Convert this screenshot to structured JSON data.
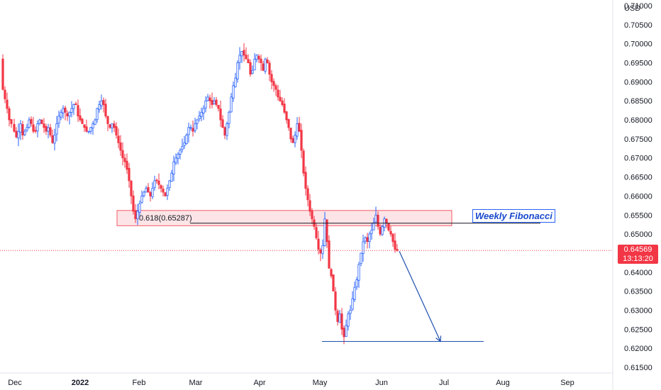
{
  "chart_data": {
    "type": "candlestick",
    "currency": "USD",
    "y_ticks": [
      "0.71000",
      "0.70500",
      "0.70000",
      "0.69500",
      "0.69000",
      "0.68500",
      "0.68000",
      "0.67500",
      "0.67000",
      "0.66500",
      "0.66000",
      "0.65500",
      "0.65000",
      "0.64500",
      "0.64000",
      "0.63500",
      "0.63000",
      "0.62500",
      "0.62000",
      "0.61500"
    ],
    "x_ticks": [
      {
        "label": "Dec",
        "bold": false
      },
      {
        "label": "2022",
        "bold": true
      },
      {
        "label": "Feb",
        "bold": false
      },
      {
        "label": "Mar",
        "bold": false
      },
      {
        "label": "Apr",
        "bold": false
      },
      {
        "label": "May",
        "bold": false
      },
      {
        "label": "Jun",
        "bold": false
      },
      {
        "label": "Jul",
        "bold": false
      },
      {
        "label": "Aug",
        "bold": false
      },
      {
        "label": "Sep",
        "bold": false
      }
    ],
    "ylim": [
      0.6135,
      0.7115
    ],
    "last_price": "0.64569",
    "countdown": "13:13:20",
    "colors": {
      "up": "#2962ff",
      "down": "#f23645",
      "zone_fill": "#fde4e6",
      "zone_border": "#f23645",
      "arrow": "#1e4fb0",
      "fib_line": "#131722"
    },
    "fib_level": {
      "label": "0.618(0.65287)",
      "value": 0.65287
    },
    "zone": {
      "low": 0.6522,
      "high": 0.6562
    },
    "target_level": 0.6218,
    "note": "Weekly Fibonacci",
    "price_path": [
      [
        0,
        0.696
      ],
      [
        4,
        0.688
      ],
      [
        7,
        0.6855
      ],
      [
        10,
        0.683
      ],
      [
        13,
        0.68
      ],
      [
        16,
        0.679
      ],
      [
        20,
        0.677
      ],
      [
        23,
        0.6755
      ],
      [
        26,
        0.677
      ],
      [
        29,
        0.679
      ],
      [
        32,
        0.676
      ],
      [
        35,
        0.677
      ],
      [
        38,
        0.678
      ],
      [
        41,
        0.68
      ],
      [
        44,
        0.679
      ],
      [
        47,
        0.677
      ],
      [
        50,
        0.677
      ],
      [
        53,
        0.679
      ],
      [
        56,
        0.68
      ],
      [
        59,
        0.679
      ],
      [
        62,
        0.678
      ],
      [
        65,
        0.677
      ],
      [
        68,
        0.678
      ],
      [
        71,
        0.676
      ],
      [
        74,
        0.674
      ],
      [
        77,
        0.676
      ],
      [
        80,
        0.679
      ],
      [
        83,
        0.681
      ],
      [
        86,
        0.682
      ],
      [
        89,
        0.683
      ],
      [
        92,
        0.682
      ],
      [
        95,
        0.681
      ],
      [
        98,
        0.682
      ],
      [
        101,
        0.683
      ],
      [
        104,
        0.684
      ],
      [
        107,
        0.684
      ],
      [
        110,
        0.681
      ],
      [
        113,
        0.68
      ],
      [
        116,
        0.679
      ],
      [
        119,
        0.678
      ],
      [
        122,
        0.677
      ],
      [
        125,
        0.677
      ],
      [
        128,
        0.678
      ],
      [
        131,
        0.679
      ],
      [
        134,
        0.68
      ],
      [
        137,
        0.683
      ],
      [
        140,
        0.684
      ],
      [
        143,
        0.685
      ],
      [
        146,
        0.684
      ],
      [
        149,
        0.681
      ],
      [
        152,
        0.679
      ],
      [
        155,
        0.678
      ],
      [
        158,
        0.679
      ],
      [
        161,
        0.678
      ],
      [
        164,
        0.676
      ],
      [
        167,
        0.674
      ],
      [
        170,
        0.672
      ],
      [
        173,
        0.67
      ],
      [
        176,
        0.669
      ],
      [
        179,
        0.667
      ],
      [
        182,
        0.664
      ],
      [
        185,
        0.66
      ],
      [
        188,
        0.656
      ],
      [
        191,
        0.654
      ],
      [
        194,
        0.656
      ],
      [
        197,
        0.658
      ],
      [
        200,
        0.66
      ],
      [
        203,
        0.661
      ],
      [
        206,
        0.662
      ],
      [
        209,
        0.661
      ],
      [
        212,
        0.66
      ],
      [
        215,
        0.662
      ],
      [
        218,
        0.664
      ],
      [
        221,
        0.664
      ],
      [
        224,
        0.663
      ],
      [
        227,
        0.662
      ],
      [
        230,
        0.661
      ],
      [
        233,
        0.66
      ],
      [
        236,
        0.662
      ],
      [
        239,
        0.664
      ],
      [
        242,
        0.666
      ],
      [
        245,
        0.669
      ],
      [
        248,
        0.67
      ],
      [
        251,
        0.671
      ],
      [
        254,
        0.672
      ],
      [
        257,
        0.673
      ],
      [
        260,
        0.674
      ],
      [
        263,
        0.676
      ],
      [
        266,
        0.678
      ],
      [
        269,
        0.678
      ],
      [
        272,
        0.677
      ],
      [
        275,
        0.679
      ],
      [
        278,
        0.68
      ],
      [
        281,
        0.681
      ],
      [
        284,
        0.682
      ],
      [
        287,
        0.683
      ],
      [
        290,
        0.685
      ],
      [
        293,
        0.686
      ],
      [
        296,
        0.685
      ],
      [
        299,
        0.684
      ],
      [
        302,
        0.685
      ],
      [
        305,
        0.684
      ],
      [
        308,
        0.683
      ],
      [
        311,
        0.68
      ],
      [
        314,
        0.678
      ],
      [
        317,
        0.676
      ],
      [
        320,
        0.679
      ],
      [
        323,
        0.682
      ],
      [
        326,
        0.686
      ],
      [
        329,
        0.689
      ],
      [
        332,
        0.691
      ],
      [
        335,
        0.695
      ],
      [
        338,
        0.697
      ],
      [
        341,
        0.698
      ],
      [
        344,
        0.697
      ],
      [
        347,
        0.696
      ],
      [
        350,
        0.695
      ],
      [
        353,
        0.692
      ],
      [
        356,
        0.693
      ],
      [
        359,
        0.696
      ],
      [
        362,
        0.697
      ],
      [
        365,
        0.696
      ],
      [
        368,
        0.695
      ],
      [
        371,
        0.693
      ],
      [
        374,
        0.696
      ],
      [
        377,
        0.695
      ],
      [
        380,
        0.692
      ],
      [
        383,
        0.69
      ],
      [
        386,
        0.689
      ],
      [
        389,
        0.688
      ],
      [
        392,
        0.686
      ],
      [
        395,
        0.685
      ],
      [
        398,
        0.684
      ],
      [
        401,
        0.682
      ],
      [
        404,
        0.68
      ],
      [
        407,
        0.678
      ],
      [
        410,
        0.675
      ],
      [
        413,
        0.674
      ],
      [
        416,
        0.676
      ],
      [
        419,
        0.679
      ],
      [
        422,
        0.677
      ],
      [
        425,
        0.672
      ],
      [
        428,
        0.666
      ],
      [
        431,
        0.662
      ],
      [
        434,
        0.659
      ],
      [
        437,
        0.656
      ],
      [
        440,
        0.654
      ],
      [
        443,
        0.652
      ],
      [
        446,
        0.649
      ],
      [
        449,
        0.646
      ],
      [
        452,
        0.645
      ],
      [
        455,
        0.647
      ],
      [
        458,
        0.654
      ],
      [
        461,
        0.648
      ],
      [
        464,
        0.641
      ],
      [
        467,
        0.639
      ],
      [
        470,
        0.635
      ],
      [
        473,
        0.63
      ],
      [
        476,
        0.627
      ],
      [
        479,
        0.629
      ],
      [
        482,
        0.625
      ],
      [
        485,
        0.623
      ],
      [
        488,
        0.626
      ],
      [
        491,
        0.629
      ],
      [
        494,
        0.63
      ],
      [
        497,
        0.633
      ],
      [
        500,
        0.636
      ],
      [
        503,
        0.638
      ],
      [
        506,
        0.642
      ],
      [
        509,
        0.645
      ],
      [
        512,
        0.648
      ],
      [
        515,
        0.649
      ],
      [
        518,
        0.648
      ],
      [
        521,
        0.65
      ],
      [
        524,
        0.651
      ],
      [
        527,
        0.653
      ],
      [
        530,
        0.655
      ],
      [
        533,
        0.652
      ],
      [
        536,
        0.65
      ],
      [
        539,
        0.652
      ],
      [
        542,
        0.654
      ],
      [
        545,
        0.653
      ],
      [
        548,
        0.651
      ],
      [
        551,
        0.65
      ],
      [
        554,
        0.648
      ],
      [
        557,
        0.646
      ],
      [
        560,
        0.6457
      ]
    ]
  }
}
